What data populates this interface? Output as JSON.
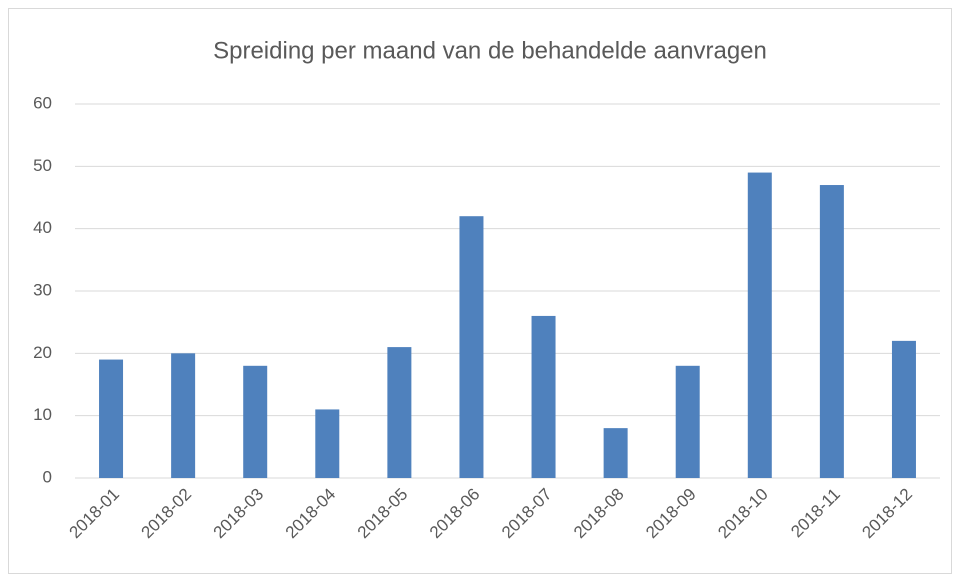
{
  "chart_data": {
    "type": "bar",
    "title": "Spreiding per maand van de behandelde aanvragen",
    "categories": [
      "2018-01",
      "2018-02",
      "2018-03",
      "2018-04",
      "2018-05",
      "2018-06",
      "2018-07",
      "2018-08",
      "2018-09",
      "2018-10",
      "2018-11",
      "2018-12"
    ],
    "values": [
      19,
      20,
      18,
      11,
      21,
      42,
      26,
      8,
      18,
      49,
      47,
      22
    ],
    "color": "#4f81bd",
    "ylim": [
      0,
      60
    ],
    "yticks": [
      0,
      10,
      20,
      30,
      40,
      50,
      60
    ],
    "grid": true
  }
}
